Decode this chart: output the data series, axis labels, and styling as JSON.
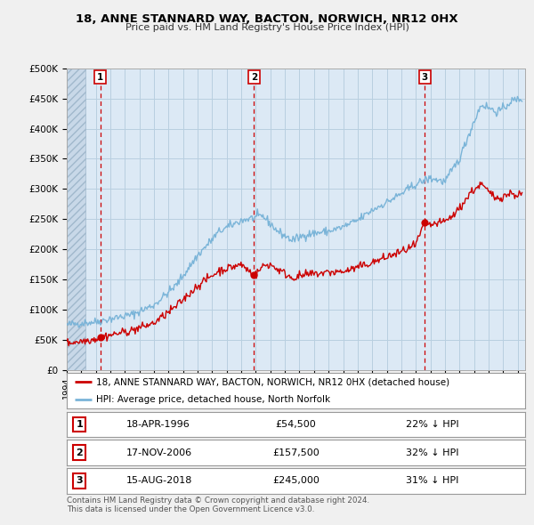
{
  "title": "18, ANNE STANNARD WAY, BACTON, NORWICH, NR12 0HX",
  "subtitle": "Price paid vs. HM Land Registry's House Price Index (HPI)",
  "ylim": [
    0,
    500000
  ],
  "yticks": [
    0,
    50000,
    100000,
    150000,
    200000,
    250000,
    300000,
    350000,
    400000,
    450000,
    500000
  ],
  "ytick_labels": [
    "£0",
    "£50K",
    "£100K",
    "£150K",
    "£200K",
    "£250K",
    "£300K",
    "£350K",
    "£400K",
    "£450K",
    "£500K"
  ],
  "xlim_start": 1994.0,
  "xlim_end": 2025.5,
  "sale_dates": [
    1996.296,
    2006.88,
    2018.62
  ],
  "sale_prices": [
    54500,
    157500,
    245000
  ],
  "sale_labels": [
    "1",
    "2",
    "3"
  ],
  "hpi_color": "#7ab4d8",
  "price_color": "#cc0000",
  "legend_label_price": "18, ANNE STANNARD WAY, BACTON, NORWICH, NR12 0HX (detached house)",
  "legend_label_hpi": "HPI: Average price, detached house, North Norfolk",
  "table_data": [
    [
      "1",
      "18-APR-1996",
      "£54,500",
      "22% ↓ HPI"
    ],
    [
      "2",
      "17-NOV-2006",
      "£157,500",
      "32% ↓ HPI"
    ],
    [
      "3",
      "15-AUG-2018",
      "£245,000",
      "31% ↓ HPI"
    ]
  ],
  "footnote": "Contains HM Land Registry data © Crown copyright and database right 2024.\nThis data is licensed under the Open Government Licence v3.0.",
  "bg_color": "#f0f0f0",
  "plot_bg_color": "#dce9f5",
  "grid_color": "#b8cfe0",
  "hatch_color": "#c8d8e8"
}
